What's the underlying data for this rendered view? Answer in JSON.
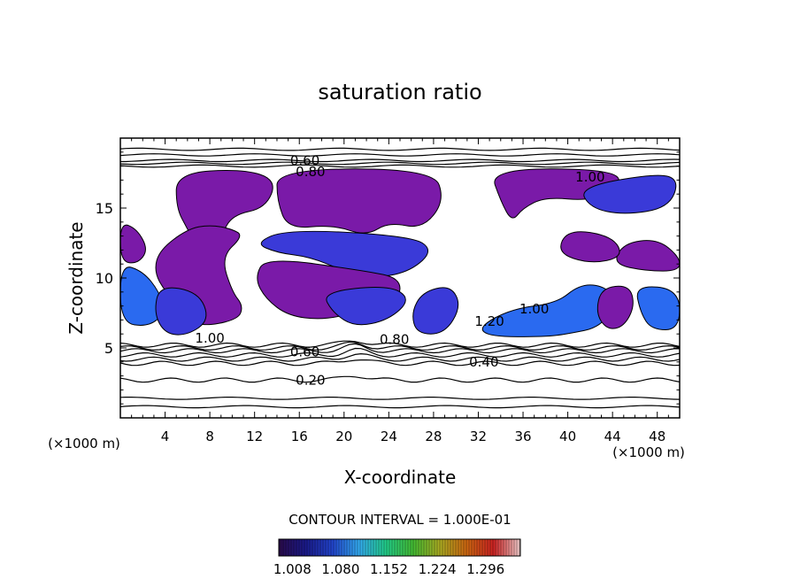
{
  "chart_data": {
    "type": "heatmap",
    "title": "saturation ratio",
    "xlabel": "X-coordinate",
    "ylabel": "Z-coordinate",
    "x_unit": "(×1000 m)",
    "y_unit": "(×1000 m)",
    "xlim": [
      0,
      50
    ],
    "ylim": [
      0,
      20
    ],
    "x_ticks": [
      4,
      8,
      12,
      16,
      20,
      24,
      28,
      32,
      36,
      40,
      44,
      48
    ],
    "y_ticks": [
      5,
      10,
      15
    ],
    "contour_interval_text": "CONTOUR INTERVAL = 1.000E-01",
    "contour_labels": [
      {
        "text": "0.60",
        "x": 16.5,
        "z": 18.4
      },
      {
        "text": "0.80",
        "x": 17.0,
        "z": 17.6
      },
      {
        "text": "1.00",
        "x": 42.0,
        "z": 17.2
      },
      {
        "text": "1.00",
        "x": 8.0,
        "z": 5.7
      },
      {
        "text": "0.80",
        "x": 24.5,
        "z": 5.6
      },
      {
        "text": "0.60",
        "x": 16.5,
        "z": 4.7
      },
      {
        "text": "0.40",
        "x": 32.5,
        "z": 4.0
      },
      {
        "text": "0.20",
        "x": 17.0,
        "z": 2.7
      },
      {
        "text": "1.00",
        "x": 37.0,
        "z": 7.8
      },
      {
        "text": "1.20",
        "x": 33.0,
        "z": 6.9
      }
    ],
    "background_contours_z": [
      0.8,
      1.4,
      2.7,
      3.9,
      4.2,
      4.5,
      4.8,
      5.0,
      5.2,
      18.0,
      18.2,
      18.4,
      18.8,
      19.2
    ],
    "colorbar": {
      "ticks": [
        "1.008",
        "1.080",
        "1.152",
        "1.224",
        "1.296"
      ],
      "colors": [
        "#2a0a4a",
        "#1a1a8a",
        "#2244cc",
        "#33aaee",
        "#22cc88",
        "#44bb33",
        "#aaaa22",
        "#cc6611",
        "#cc2222",
        "#eecccc"
      ]
    },
    "colors": {
      "supersaturated_low": "#7a1aa8",
      "supersaturated_mid": "#3a3ad8",
      "supersaturated_edge": "#2a6af0",
      "contour_line": "#000000"
    }
  }
}
